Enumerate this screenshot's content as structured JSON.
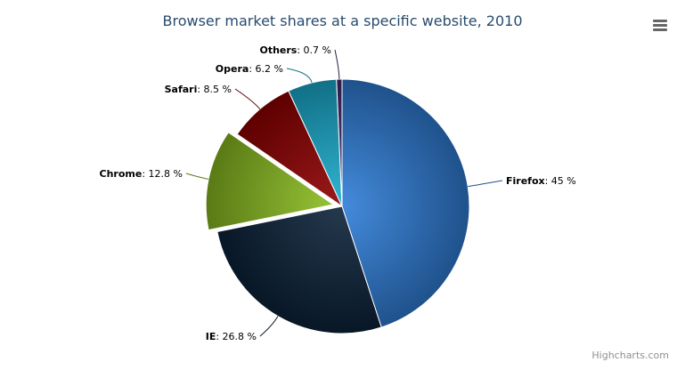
{
  "chart_data": {
    "type": "pie",
    "title": "Browser market shares at a specific website, 2010",
    "slices": [
      {
        "name": "Firefox",
        "value": 45.0,
        "color": "#2f7ed8",
        "sliced": false
      },
      {
        "name": "IE",
        "value": 26.8,
        "color": "#0d233a",
        "sliced": false
      },
      {
        "name": "Chrome",
        "value": 12.8,
        "color": "#8bbc21",
        "sliced": true
      },
      {
        "name": "Safari",
        "value": 8.5,
        "color": "#910000",
        "sliced": false
      },
      {
        "name": "Opera",
        "value": 6.2,
        "color": "#1aadce",
        "sliced": false
      },
      {
        "name": "Others",
        "value": 0.7,
        "color": "#492970",
        "sliced": false
      }
    ],
    "label_format": "{name}: {value} %",
    "legend": "none"
  },
  "credits": "Highcharts.com",
  "menu_icon": "hamburger-menu-icon"
}
